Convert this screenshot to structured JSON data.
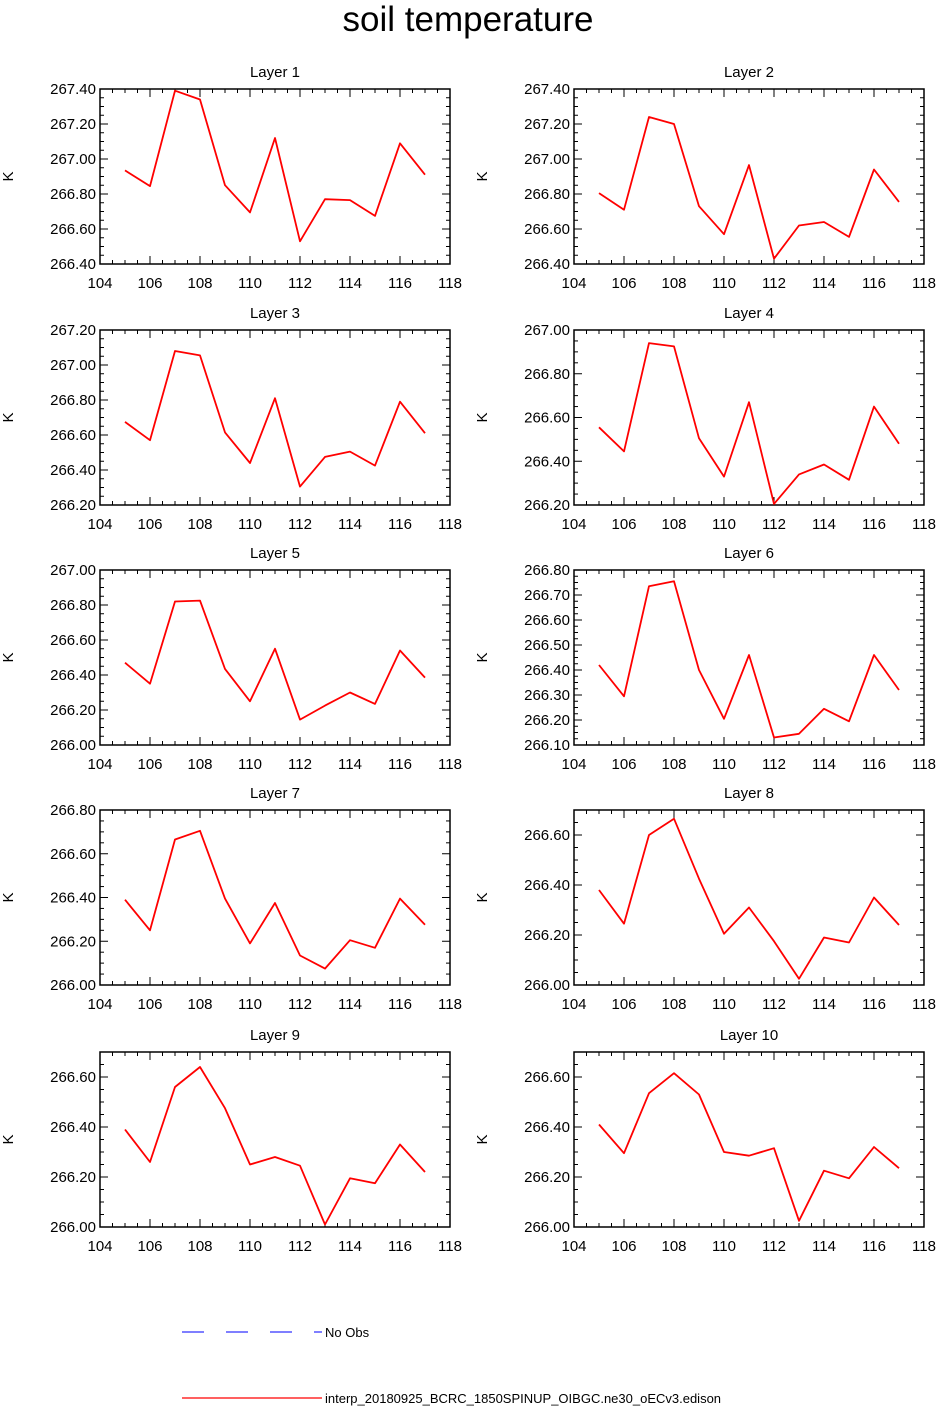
{
  "title": "soil temperature",
  "legend": [
    {
      "label": "No Obs",
      "color": "#3333ff",
      "style": "dashed"
    },
    {
      "label": "interp_20180925_BCRC_1850SPINUP_OIBGC.ne30_oECv3.edison",
      "color": "#ff0000",
      "style": "solid"
    }
  ],
  "chart_data": [
    {
      "type": "line",
      "title": "Layer 1",
      "xlabel": "",
      "ylabel": "K",
      "xlim": [
        104,
        118
      ],
      "ylim": [
        266.4,
        267.4
      ],
      "xticks": [
        104,
        106,
        108,
        110,
        112,
        114,
        116,
        118
      ],
      "yticks": [
        266.4,
        266.6,
        266.8,
        267.0,
        267.2,
        267.4
      ],
      "x": [
        105,
        106,
        107,
        108,
        109,
        110,
        111,
        112,
        113,
        114,
        115,
        116,
        117
      ],
      "series": [
        {
          "name": "interp_20180925_BCRC_1850SPINUP_OIBGC.ne30_oECv3.edison",
          "color": "#ff0000",
          "values": [
            266.935,
            266.845,
            267.39,
            267.34,
            266.85,
            266.695,
            267.12,
            266.53,
            266.77,
            266.765,
            266.675,
            267.09,
            266.91
          ]
        }
      ]
    },
    {
      "type": "line",
      "title": "Layer 2",
      "xlabel": "",
      "ylabel": "K",
      "xlim": [
        104,
        118
      ],
      "ylim": [
        266.4,
        267.4
      ],
      "xticks": [
        104,
        106,
        108,
        110,
        112,
        114,
        116,
        118
      ],
      "yticks": [
        266.4,
        266.6,
        266.8,
        267.0,
        267.2,
        267.4
      ],
      "x": [
        105,
        106,
        107,
        108,
        109,
        110,
        111,
        112,
        113,
        114,
        115,
        116,
        117
      ],
      "series": [
        {
          "name": "interp_20180925_BCRC_1850SPINUP_OIBGC.ne30_oECv3.edison",
          "color": "#ff0000",
          "values": [
            266.805,
            266.71,
            267.24,
            267.2,
            266.73,
            266.57,
            266.965,
            266.43,
            266.62,
            266.64,
            266.555,
            266.94,
            266.755
          ]
        }
      ]
    },
    {
      "type": "line",
      "title": "Layer 3",
      "xlabel": "",
      "ylabel": "K",
      "xlim": [
        104,
        118
      ],
      "ylim": [
        266.2,
        267.2
      ],
      "xticks": [
        104,
        106,
        108,
        110,
        112,
        114,
        116,
        118
      ],
      "yticks": [
        266.2,
        266.4,
        266.6,
        266.8,
        267.0,
        267.2
      ],
      "x": [
        105,
        106,
        107,
        108,
        109,
        110,
        111,
        112,
        113,
        114,
        115,
        116,
        117
      ],
      "series": [
        {
          "name": "interp_20180925_BCRC_1850SPINUP_OIBGC.ne30_oECv3.edison",
          "color": "#ff0000",
          "values": [
            266.675,
            266.57,
            267.08,
            267.055,
            266.615,
            266.44,
            266.81,
            266.305,
            266.475,
            266.505,
            266.425,
            266.79,
            266.61
          ]
        }
      ]
    },
    {
      "type": "line",
      "title": "Layer 4",
      "xlabel": "",
      "ylabel": "K",
      "xlim": [
        104,
        118
      ],
      "ylim": [
        266.2,
        267.0
      ],
      "xticks": [
        104,
        106,
        108,
        110,
        112,
        114,
        116,
        118
      ],
      "yticks": [
        266.2,
        266.4,
        266.6,
        266.8,
        267.0
      ],
      "x": [
        105,
        106,
        107,
        108,
        109,
        110,
        111,
        112,
        113,
        114,
        115,
        116,
        117
      ],
      "series": [
        {
          "name": "interp_20180925_BCRC_1850SPINUP_OIBGC.ne30_oECv3.edison",
          "color": "#ff0000",
          "values": [
            266.555,
            266.445,
            266.94,
            266.925,
            266.505,
            266.33,
            266.67,
            266.205,
            266.34,
            266.385,
            266.315,
            266.65,
            266.48
          ]
        }
      ]
    },
    {
      "type": "line",
      "title": "Layer 5",
      "xlabel": "",
      "ylabel": "K",
      "xlim": [
        104,
        118
      ],
      "ylim": [
        266.0,
        267.0
      ],
      "xticks": [
        104,
        106,
        108,
        110,
        112,
        114,
        116,
        118
      ],
      "yticks": [
        266.0,
        266.2,
        266.4,
        266.6,
        266.8,
        267.0
      ],
      "x": [
        105,
        106,
        107,
        108,
        109,
        110,
        111,
        112,
        113,
        114,
        115,
        116,
        117
      ],
      "series": [
        {
          "name": "interp_20180925_BCRC_1850SPINUP_OIBGC.ne30_oECv3.edison",
          "color": "#ff0000",
          "values": [
            266.47,
            266.35,
            266.82,
            266.825,
            266.435,
            266.25,
            266.55,
            266.145,
            266.225,
            266.3,
            266.235,
            266.54,
            266.385
          ]
        }
      ]
    },
    {
      "type": "line",
      "title": "Layer 6",
      "xlabel": "",
      "ylabel": "K",
      "xlim": [
        104,
        118
      ],
      "ylim": [
        266.1,
        266.8
      ],
      "xticks": [
        104,
        106,
        108,
        110,
        112,
        114,
        116,
        118
      ],
      "yticks": [
        266.1,
        266.2,
        266.3,
        266.4,
        266.5,
        266.6,
        266.7,
        266.8
      ],
      "x": [
        105,
        106,
        107,
        108,
        109,
        110,
        111,
        112,
        113,
        114,
        115,
        116,
        117
      ],
      "series": [
        {
          "name": "interp_20180925_BCRC_1850SPINUP_OIBGC.ne30_oECv3.edison",
          "color": "#ff0000",
          "values": [
            266.42,
            266.295,
            266.735,
            266.755,
            266.4,
            266.205,
            266.46,
            266.13,
            266.145,
            266.245,
            266.195,
            266.46,
            266.32
          ]
        }
      ]
    },
    {
      "type": "line",
      "title": "Layer 7",
      "xlabel": "",
      "ylabel": "K",
      "xlim": [
        104,
        118
      ],
      "ylim": [
        266.0,
        266.8
      ],
      "xticks": [
        104,
        106,
        108,
        110,
        112,
        114,
        116,
        118
      ],
      "yticks": [
        266.0,
        266.2,
        266.4,
        266.6,
        266.8
      ],
      "x": [
        105,
        106,
        107,
        108,
        109,
        110,
        111,
        112,
        113,
        114,
        115,
        116,
        117
      ],
      "series": [
        {
          "name": "interp_20180925_BCRC_1850SPINUP_OIBGC.ne30_oECv3.edison",
          "color": "#ff0000",
          "values": [
            266.39,
            266.25,
            266.665,
            266.705,
            266.395,
            266.19,
            266.375,
            266.135,
            266.075,
            266.205,
            266.17,
            266.395,
            266.275
          ]
        }
      ]
    },
    {
      "type": "line",
      "title": "Layer 8",
      "xlabel": "",
      "ylabel": "K",
      "xlim": [
        104,
        118
      ],
      "ylim": [
        266.0,
        266.7
      ],
      "xticks": [
        104,
        106,
        108,
        110,
        112,
        114,
        116,
        118
      ],
      "yticks": [
        266.0,
        266.2,
        266.4,
        266.6
      ],
      "x": [
        105,
        106,
        107,
        108,
        109,
        110,
        111,
        112,
        113,
        114,
        115,
        116,
        117
      ],
      "series": [
        {
          "name": "interp_20180925_BCRC_1850SPINUP_OIBGC.ne30_oECv3.edison",
          "color": "#ff0000",
          "values": [
            266.38,
            266.245,
            266.6,
            266.665,
            266.425,
            266.205,
            266.31,
            266.175,
            266.025,
            266.19,
            266.17,
            266.35,
            266.24
          ]
        }
      ]
    },
    {
      "type": "line",
      "title": "Layer 9",
      "xlabel": "",
      "ylabel": "K",
      "xlim": [
        104,
        118
      ],
      "ylim": [
        266.0,
        266.7
      ],
      "xticks": [
        104,
        106,
        108,
        110,
        112,
        114,
        116,
        118
      ],
      "yticks": [
        266.0,
        266.2,
        266.4,
        266.6
      ],
      "x": [
        105,
        106,
        107,
        108,
        109,
        110,
        111,
        112,
        113,
        114,
        115,
        116,
        117
      ],
      "series": [
        {
          "name": "interp_20180925_BCRC_1850SPINUP_OIBGC.ne30_oECv3.edison",
          "color": "#ff0000",
          "values": [
            266.39,
            266.26,
            266.56,
            266.64,
            266.475,
            266.25,
            266.28,
            266.245,
            266.01,
            266.195,
            266.175,
            266.33,
            266.22
          ]
        }
      ]
    },
    {
      "type": "line",
      "title": "Layer 10",
      "xlabel": "",
      "ylabel": "K",
      "xlim": [
        104,
        118
      ],
      "ylim": [
        266.0,
        266.7
      ],
      "xticks": [
        104,
        106,
        108,
        110,
        112,
        114,
        116,
        118
      ],
      "yticks": [
        266.0,
        266.2,
        266.4,
        266.6
      ],
      "x": [
        105,
        106,
        107,
        108,
        109,
        110,
        111,
        112,
        113,
        114,
        115,
        116,
        117
      ],
      "series": [
        {
          "name": "interp_20180925_BCRC_1850SPINUP_OIBGC.ne30_oECv3.edison",
          "color": "#ff0000",
          "values": [
            266.41,
            266.295,
            266.535,
            266.615,
            266.53,
            266.3,
            266.285,
            266.315,
            266.025,
            266.225,
            266.195,
            266.32,
            266.235
          ]
        }
      ]
    }
  ]
}
